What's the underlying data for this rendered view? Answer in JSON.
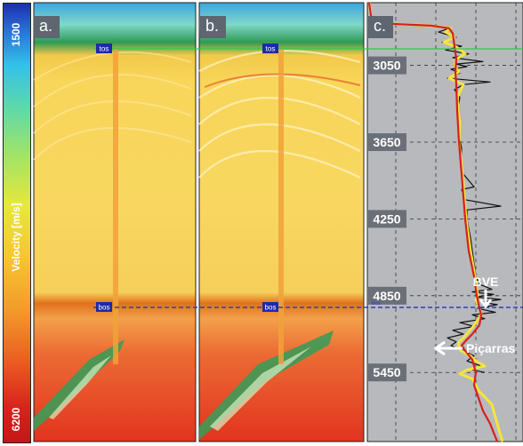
{
  "colorbar": {
    "title": "Velocity [m/s]",
    "min_label": "6200",
    "max_label": "1500",
    "colors": [
      "#1d2fb0",
      "#2a6fd6",
      "#33c1e8",
      "#5fd9a8",
      "#9ee36a",
      "#e6e83a",
      "#f7c531",
      "#f39a2a",
      "#ea5a22",
      "#d8231c",
      "#c4161a"
    ]
  },
  "panels": [
    {
      "label": "a."
    },
    {
      "label": "b."
    },
    {
      "label": "c."
    }
  ],
  "markers": {
    "tos": "tos",
    "bos": "bos",
    "bos_small": "bos"
  },
  "annotations": {
    "bve": "BVE",
    "picarras": "Piçarras"
  },
  "colors": {
    "red_curve": "#d81f1f",
    "yellow_curve": "#f5e43a",
    "black_curve": "#111111",
    "tos_line": "#34c94a",
    "bos_line": "#2a3fb8"
  },
  "chart_data": {
    "type": "line",
    "ylabel": "",
    "yticks": [
      "3050",
      "3650",
      "4250",
      "4850",
      "5450"
    ],
    "ylim": [
      2560,
      5990
    ],
    "grid": true,
    "series": [
      {
        "points": [
          [
            2560,
            2
          ],
          [
            2660,
            4
          ],
          [
            2720,
            8
          ],
          [
            2740,
            72
          ],
          [
            2760,
            92
          ],
          [
            2800,
            96
          ],
          [
            2900,
            98
          ],
          [
            3000,
            100
          ],
          [
            3100,
            99
          ],
          [
            3200,
            100
          ],
          [
            3400,
            101
          ],
          [
            3650,
            103
          ],
          [
            3900,
            106
          ],
          [
            4250,
            110
          ],
          [
            4500,
            114
          ],
          [
            4700,
            120
          ],
          [
            4800,
            122
          ],
          [
            4850,
            123
          ],
          [
            4880,
            124
          ],
          [
            4950,
            126
          ],
          [
            5000,
            128
          ],
          [
            5080,
            126
          ],
          [
            5150,
            118
          ],
          [
            5200,
            111
          ],
          [
            5240,
            106
          ],
          [
            5280,
            110
          ],
          [
            5350,
            118
          ],
          [
            5450,
            122
          ],
          [
            5550,
            120
          ],
          [
            5650,
            125
          ],
          [
            5750,
            130
          ],
          [
            5850,
            138
          ],
          [
            5990,
            146
          ]
        ]
      },
      {
        "points": [
          [
            2560,
            2
          ],
          [
            2660,
            4
          ],
          [
            2720,
            8
          ],
          [
            2740,
            72
          ],
          [
            2760,
            94
          ],
          [
            2790,
            88
          ],
          [
            2830,
            98
          ],
          [
            2870,
            86
          ],
          [
            2900,
            99
          ],
          [
            2960,
            110
          ],
          [
            3000,
            100
          ],
          [
            3050,
            98
          ],
          [
            3100,
            103
          ],
          [
            3150,
            92
          ],
          [
            3200,
            108
          ],
          [
            3300,
            101
          ],
          [
            3400,
            102
          ],
          [
            3500,
            104
          ],
          [
            3650,
            103
          ],
          [
            3900,
            107
          ],
          [
            4250,
            111
          ],
          [
            4500,
            116
          ],
          [
            4700,
            121
          ],
          [
            4800,
            123
          ],
          [
            4850,
            124
          ],
          [
            4880,
            122
          ],
          [
            4950,
            126
          ],
          [
            5000,
            128
          ],
          [
            5100,
            118
          ],
          [
            5180,
            108
          ],
          [
            5220,
            102
          ],
          [
            5280,
            105
          ],
          [
            5320,
            116
          ],
          [
            5360,
            122
          ],
          [
            5400,
            132
          ],
          [
            5430,
            112
          ],
          [
            5460,
            104
          ],
          [
            5500,
            118
          ],
          [
            5600,
            126
          ],
          [
            5700,
            140
          ],
          [
            5800,
            144
          ],
          [
            5900,
            148
          ],
          [
            5990,
            152
          ]
        ]
      },
      {
        "points": [
          [
            2740,
            74
          ],
          [
            2760,
            92
          ],
          [
            2790,
            80
          ],
          [
            2830,
            100
          ],
          [
            2870,
            84
          ],
          [
            2900,
            106
          ],
          [
            2930,
            88
          ],
          [
            2960,
            114
          ],
          [
            2990,
            96
          ],
          [
            3020,
            130
          ],
          [
            3040,
            100
          ],
          [
            3060,
            112
          ],
          [
            3080,
            94
          ],
          [
            3110,
            104
          ],
          [
            3150,
            90
          ],
          [
            3180,
            138
          ],
          [
            3200,
            108
          ],
          [
            3240,
            98
          ],
          [
            3300,
            104
          ],
          [
            3400,
            101
          ],
          [
            3500,
            104
          ],
          [
            3600,
            103
          ],
          [
            3700,
            106
          ],
          [
            3800,
            105
          ],
          [
            3900,
            108
          ],
          [
            4000,
            120
          ],
          [
            4020,
            106
          ],
          [
            4100,
            110
          ],
          [
            4150,
            150
          ],
          [
            4180,
            112
          ],
          [
            4250,
            112
          ],
          [
            4400,
            116
          ],
          [
            4600,
            120
          ],
          [
            4700,
            122
          ],
          [
            4760,
            126
          ],
          [
            4800,
            140
          ],
          [
            4820,
            118
          ],
          [
            4840,
            142
          ],
          [
            4860,
            122
          ],
          [
            4880,
            150
          ],
          [
            4900,
            128
          ],
          [
            4920,
            146
          ],
          [
            4950,
            124
          ],
          [
            4980,
            144
          ],
          [
            5000,
            118
          ],
          [
            5030,
            132
          ],
          [
            5060,
            104
          ],
          [
            5090,
            120
          ],
          [
            5120,
            96
          ],
          [
            5150,
            108
          ],
          [
            5180,
            90
          ],
          [
            5210,
            100
          ],
          [
            5240,
            94
          ],
          [
            5280,
            108
          ],
          [
            5320,
            120
          ],
          [
            5360,
            112
          ],
          [
            5400,
            128
          ],
          [
            5430,
            118
          ],
          [
            5450,
            132
          ]
        ]
      }
    ]
  }
}
